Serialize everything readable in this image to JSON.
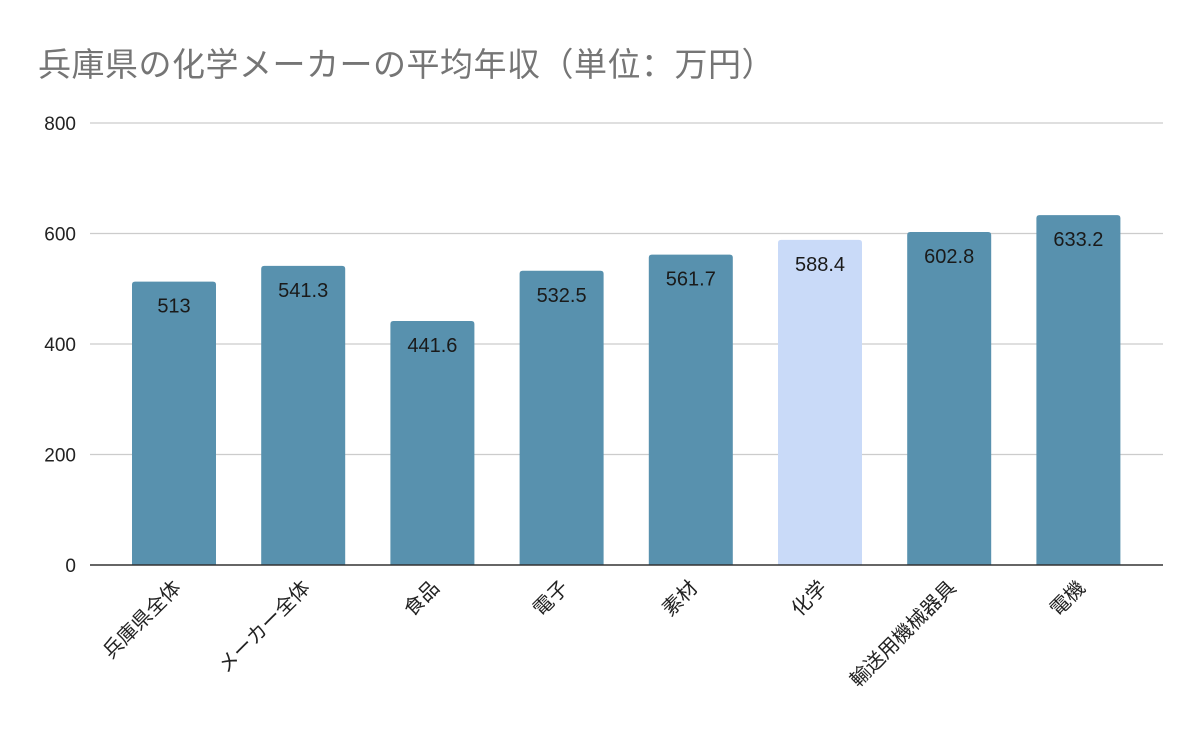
{
  "chart_data": {
    "type": "bar",
    "title": "兵庫県の化学メーカーの平均年収（単位：万円）",
    "categories": [
      "兵庫県全体",
      "メーカー全体",
      "食品",
      "電子",
      "素材",
      "化学",
      "輸送用機械器具",
      "電機"
    ],
    "values": [
      513,
      541.3,
      441.6,
      532.5,
      561.7,
      588.4,
      602.8,
      633.2
    ],
    "data_labels": [
      "513",
      "541.3",
      "441.6",
      "532.5",
      "561.7",
      "588.4",
      "602.8",
      "633.2"
    ],
    "highlight_index": 5,
    "ylim": [
      0,
      800
    ],
    "yticks": [
      0,
      200,
      400,
      600,
      800
    ],
    "xlabel": "",
    "ylabel": "",
    "grid": true,
    "legend": "none",
    "colors": {
      "bar": "#5891ae",
      "highlight": "#c9daf8",
      "grid": "#cccccc",
      "axis": "#333333",
      "title": "#757575"
    }
  }
}
